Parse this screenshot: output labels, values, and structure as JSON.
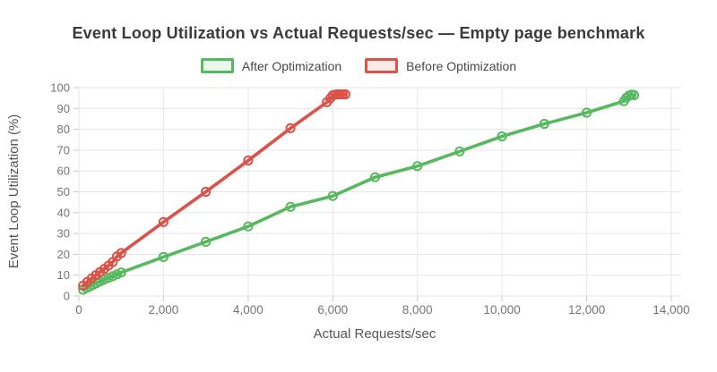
{
  "title": "Event Loop Utilization vs Actual Requests/sec — Empty page benchmark",
  "legend": {
    "items": [
      {
        "label": "After Optimization",
        "color": "#57b85f",
        "fill": "#eaf7ec"
      },
      {
        "label": "Before Optimization",
        "color": "#db5348",
        "fill": "#fbeae8"
      }
    ]
  },
  "colors": {
    "grid": "#e6e6e6",
    "tick": "#c9c9c9",
    "tick_label": "#757575",
    "axis_title": "#555555",
    "title_text": "#3a3a3a"
  },
  "chart_data": {
    "type": "line",
    "title": "Event Loop Utilization vs Actual Requests/sec — Empty page benchmark",
    "xlabel": "Actual Requests/sec",
    "ylabel": "Event Loop Utilization (%)",
    "xlim": [
      0,
      14000
    ],
    "ylim": [
      0,
      100
    ],
    "grid": true,
    "legend_position": "top",
    "marker": "open-circle",
    "x_ticks": [
      {
        "value": 0,
        "label": "0"
      },
      {
        "value": 2000,
        "label": "2,000"
      },
      {
        "value": 4000,
        "label": "4,000"
      },
      {
        "value": 6000,
        "label": "6,000"
      },
      {
        "value": 8000,
        "label": "8,000"
      },
      {
        "value": 10000,
        "label": "10,000"
      },
      {
        "value": 12000,
        "label": "12,000"
      },
      {
        "value": 14000,
        "label": "14,000"
      }
    ],
    "y_ticks": [
      {
        "value": 0,
        "label": "0"
      },
      {
        "value": 10,
        "label": "10"
      },
      {
        "value": 20,
        "label": "20"
      },
      {
        "value": 30,
        "label": "30"
      },
      {
        "value": 40,
        "label": "40"
      },
      {
        "value": 50,
        "label": "50"
      },
      {
        "value": 60,
        "label": "60"
      },
      {
        "value": 70,
        "label": "70"
      },
      {
        "value": 80,
        "label": "80"
      },
      {
        "value": 90,
        "label": "90"
      },
      {
        "value": 100,
        "label": "100"
      }
    ],
    "series": [
      {
        "name": "After Optimization",
        "color": "#57b85f",
        "points": [
          [
            100,
            3.0
          ],
          [
            180,
            3.8
          ],
          [
            260,
            4.6
          ],
          [
            340,
            5.4
          ],
          [
            420,
            6.2
          ],
          [
            500,
            7.0
          ],
          [
            600,
            7.9
          ],
          [
            700,
            8.7
          ],
          [
            800,
            9.5
          ],
          [
            900,
            10.4
          ],
          [
            1000,
            11.3
          ],
          [
            2000,
            18.7
          ],
          [
            3000,
            26.0
          ],
          [
            4000,
            33.4
          ],
          [
            5000,
            42.8
          ],
          [
            6000,
            48.0
          ],
          [
            7000,
            57.0
          ],
          [
            8000,
            62.3
          ],
          [
            9000,
            69.4
          ],
          [
            10000,
            76.6
          ],
          [
            11000,
            82.6
          ],
          [
            12000,
            88.0
          ],
          [
            12880,
            93.5
          ],
          [
            12940,
            95.2
          ],
          [
            13000,
            96.2
          ],
          [
            13060,
            96.6
          ],
          [
            13120,
            96.4
          ]
        ]
      },
      {
        "name": "Before Optimization",
        "color": "#db5348",
        "points": [
          [
            100,
            5.0
          ],
          [
            200,
            6.8
          ],
          [
            300,
            8.4
          ],
          [
            400,
            10.0
          ],
          [
            500,
            11.5
          ],
          [
            600,
            13.0
          ],
          [
            700,
            14.6
          ],
          [
            800,
            16.3
          ],
          [
            900,
            19.0
          ],
          [
            1000,
            20.6
          ],
          [
            2000,
            35.5
          ],
          [
            3000,
            50.0
          ],
          [
            4000,
            65.0
          ],
          [
            5000,
            80.5
          ],
          [
            5860,
            93.0
          ],
          [
            5940,
            94.8
          ],
          [
            6000,
            96.3
          ],
          [
            6060,
            96.7
          ],
          [
            6120,
            96.8
          ],
          [
            6180,
            96.8
          ],
          [
            6240,
            96.8
          ],
          [
            6300,
            96.8
          ]
        ]
      }
    ]
  }
}
